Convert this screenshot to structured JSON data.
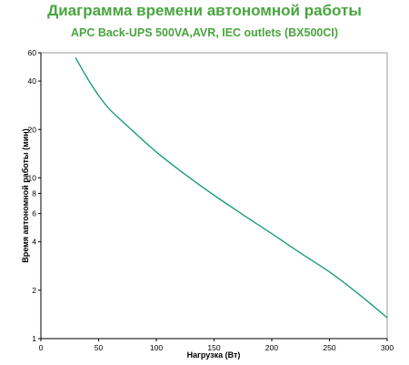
{
  "title": "Диаграмма времени автономной работы",
  "subtitle": "APC Back-UPS 500VA,AVR, IEC outlets (BX500CI)",
  "colors": {
    "title": "#49a53f",
    "curve": "#1a9c7c",
    "axis": "#000000",
    "plot_border": "#999999"
  },
  "chart_data": {
    "type": "line",
    "title": "Диаграмма времени автономной работы",
    "subtitle": "APC Back-UPS 500VA,AVR, IEC outlets (BX500CI)",
    "xlabel": "Нагрузка (Вт)",
    "ylabel": "Время автономной работы (мин)",
    "xlim": [
      0,
      300
    ],
    "ylim": [
      1,
      60
    ],
    "y_scale": "log",
    "grid": false,
    "x_ticks": [
      0,
      50,
      100,
      150,
      200,
      250,
      300
    ],
    "y_ticks": [
      1,
      2,
      4,
      6,
      8,
      10,
      20,
      40,
      60
    ],
    "series": [
      {
        "values": [
          {
            "x": 30,
            "y": 56
          },
          {
            "x": 40,
            "y": 42
          },
          {
            "x": 50,
            "y": 32.5
          },
          {
            "x": 60,
            "y": 26.5
          },
          {
            "x": 75,
            "y": 21
          },
          {
            "x": 100,
            "y": 14.5
          },
          {
            "x": 125,
            "y": 10.5
          },
          {
            "x": 150,
            "y": 7.8
          },
          {
            "x": 175,
            "y": 5.9
          },
          {
            "x": 200,
            "y": 4.5
          },
          {
            "x": 225,
            "y": 3.4
          },
          {
            "x": 250,
            "y": 2.6
          },
          {
            "x": 275,
            "y": 1.9
          },
          {
            "x": 300,
            "y": 1.35
          }
        ]
      }
    ]
  }
}
